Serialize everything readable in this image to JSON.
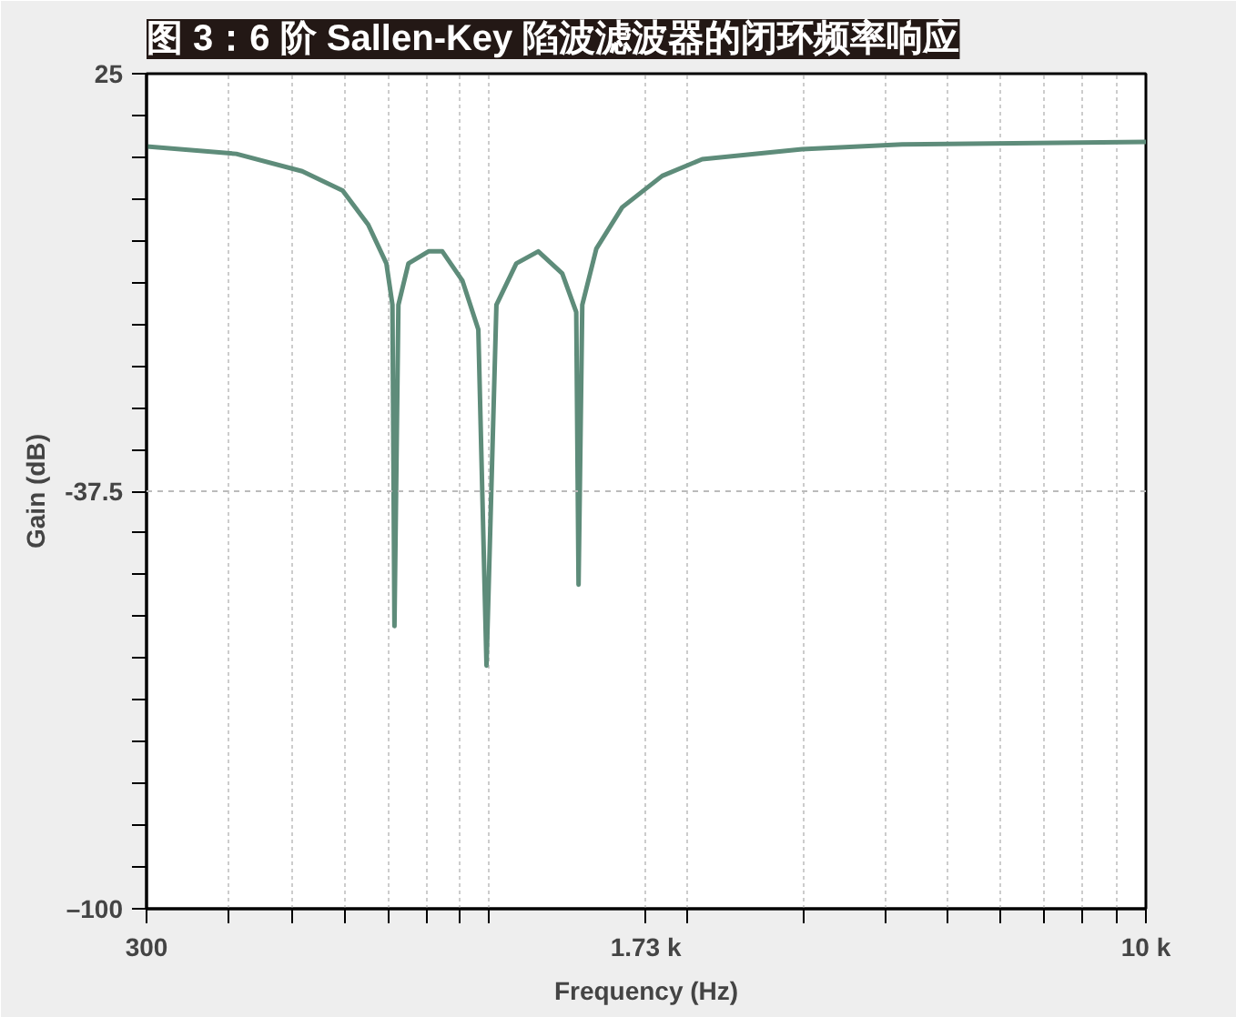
{
  "chart_data": {
    "type": "line",
    "title": "图 3：6 阶 Sallen-Key 陷波滤波器的闭环频率响应",
    "xlabel": "Frequency (Hz)",
    "ylabel": "Gain (dB)",
    "log": "x",
    "x": [
      300,
      411,
      518,
      597,
      653,
      696,
      711,
      716,
      726,
      752,
      807,
      847,
      909,
      961,
      989,
      1024,
      1098,
      1186,
      1290,
      1355,
      1366,
      1384,
      1454,
      1592,
      1832,
      2108,
      2994,
      4251,
      10000
    ],
    "series": [
      {
        "color": "#5e8c7a",
        "values": [
          14.1,
          13.0,
          10.4,
          7.5,
          2.4,
          -3.4,
          -9.6,
          -57.7,
          -9.6,
          -3.4,
          -1.6,
          -1.6,
          -6.0,
          -13.3,
          -63.6,
          -9.6,
          -3.4,
          -1.6,
          -4.9,
          -10.7,
          -51.5,
          -9.6,
          -1.2,
          5.0,
          9.7,
          12.2,
          13.7,
          14.4,
          14.8
        ]
      }
    ],
    "xlim": [
      300,
      10000
    ],
    "ylim": [
      -100,
      25
    ],
    "xticks": [
      300,
      {
        "value": 400,
        "label": null
      },
      {
        "value": 500,
        "label": null
      },
      {
        "value": 600,
        "label": null
      },
      {
        "value": 700,
        "label": null
      },
      {
        "value": 800,
        "label": null
      },
      {
        "value": 900,
        "label": null
      },
      {
        "value": 1000,
        "label": null
      },
      {
        "value": 1730,
        "label": "1.73 k"
      },
      {
        "value": 2000,
        "label": null
      },
      {
        "value": 3000,
        "label": null
      },
      {
        "value": 4000,
        "label": null
      },
      {
        "value": 5000,
        "label": null
      },
      {
        "value": 6000,
        "label": null
      },
      {
        "value": 7000,
        "label": null
      },
      {
        "value": 8000,
        "label": null
      },
      {
        "value": 9000,
        "label": null
      },
      {
        "value": 10000,
        "label": "10 k"
      }
    ],
    "yticks": [
      25,
      {
        "value": 18.75,
        "label": null
      },
      {
        "value": 12.5,
        "label": null
      },
      {
        "value": 6.25,
        "label": null
      },
      {
        "value": 0,
        "label": null
      },
      {
        "value": -6.25,
        "label": null
      },
      {
        "value": -12.5,
        "label": null
      },
      {
        "value": -18.75,
        "label": null
      },
      {
        "value": -25,
        "label": null
      },
      {
        "value": -31.25,
        "label": null
      },
      -37.5,
      {
        "value": -43.75,
        "label": null
      },
      {
        "value": -50,
        "label": null
      },
      {
        "value": -56.25,
        "label": null
      },
      {
        "value": -62.5,
        "label": null
      },
      {
        "value": -68.75,
        "label": null
      },
      {
        "value": -75,
        "label": null
      },
      {
        "value": -81.25,
        "label": null
      },
      {
        "value": -87.5,
        "label": null
      },
      {
        "value": -93.75,
        "label": null
      },
      {
        "value": -100,
        "label": "–100"
      }
    ],
    "grid": "x",
    "ref_lines": [
      {
        "axis": "y",
        "value": -37.5,
        "color": "#bbbbbb",
        "line_style": "dashed"
      }
    ],
    "line_style": "solid"
  }
}
